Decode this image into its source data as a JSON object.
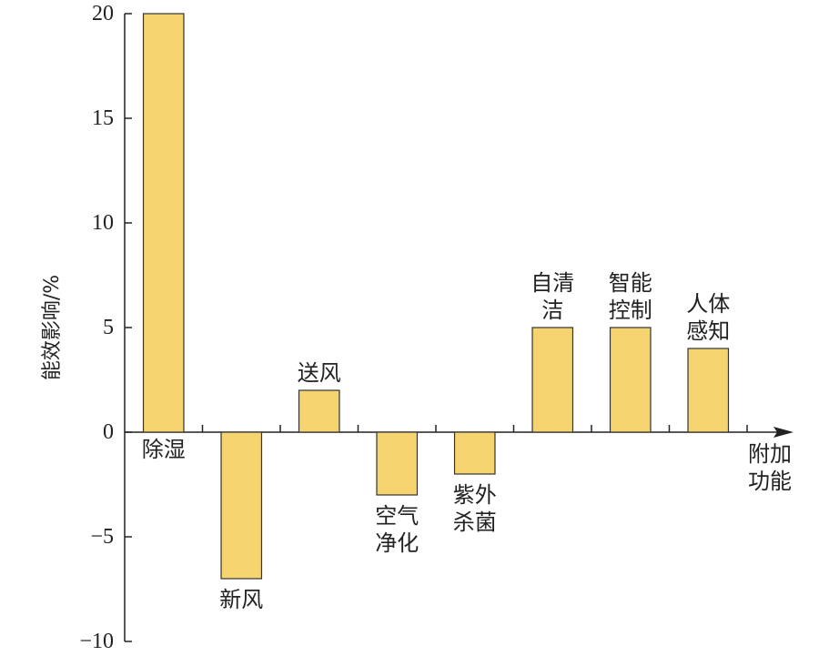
{
  "chart_data": {
    "type": "bar",
    "y_label": "能效影响/%",
    "x_label": "附加\n功能",
    "categories": [
      "除湿",
      "新风",
      "送风",
      "空气\n净化",
      "紫外\n杀菌",
      "自清\n洁",
      "智能\n控制",
      "人体\n感知"
    ],
    "values": [
      20,
      -7,
      2,
      -3,
      -2,
      5,
      5,
      4
    ],
    "color": "#f5d36e",
    "ylim": [
      -10,
      20
    ],
    "yticks": [
      {
        "value": -10,
        "label": "−10"
      },
      {
        "value": -5,
        "label": "−5"
      },
      0,
      5,
      10,
      15,
      20
    ],
    "grid": false
  }
}
